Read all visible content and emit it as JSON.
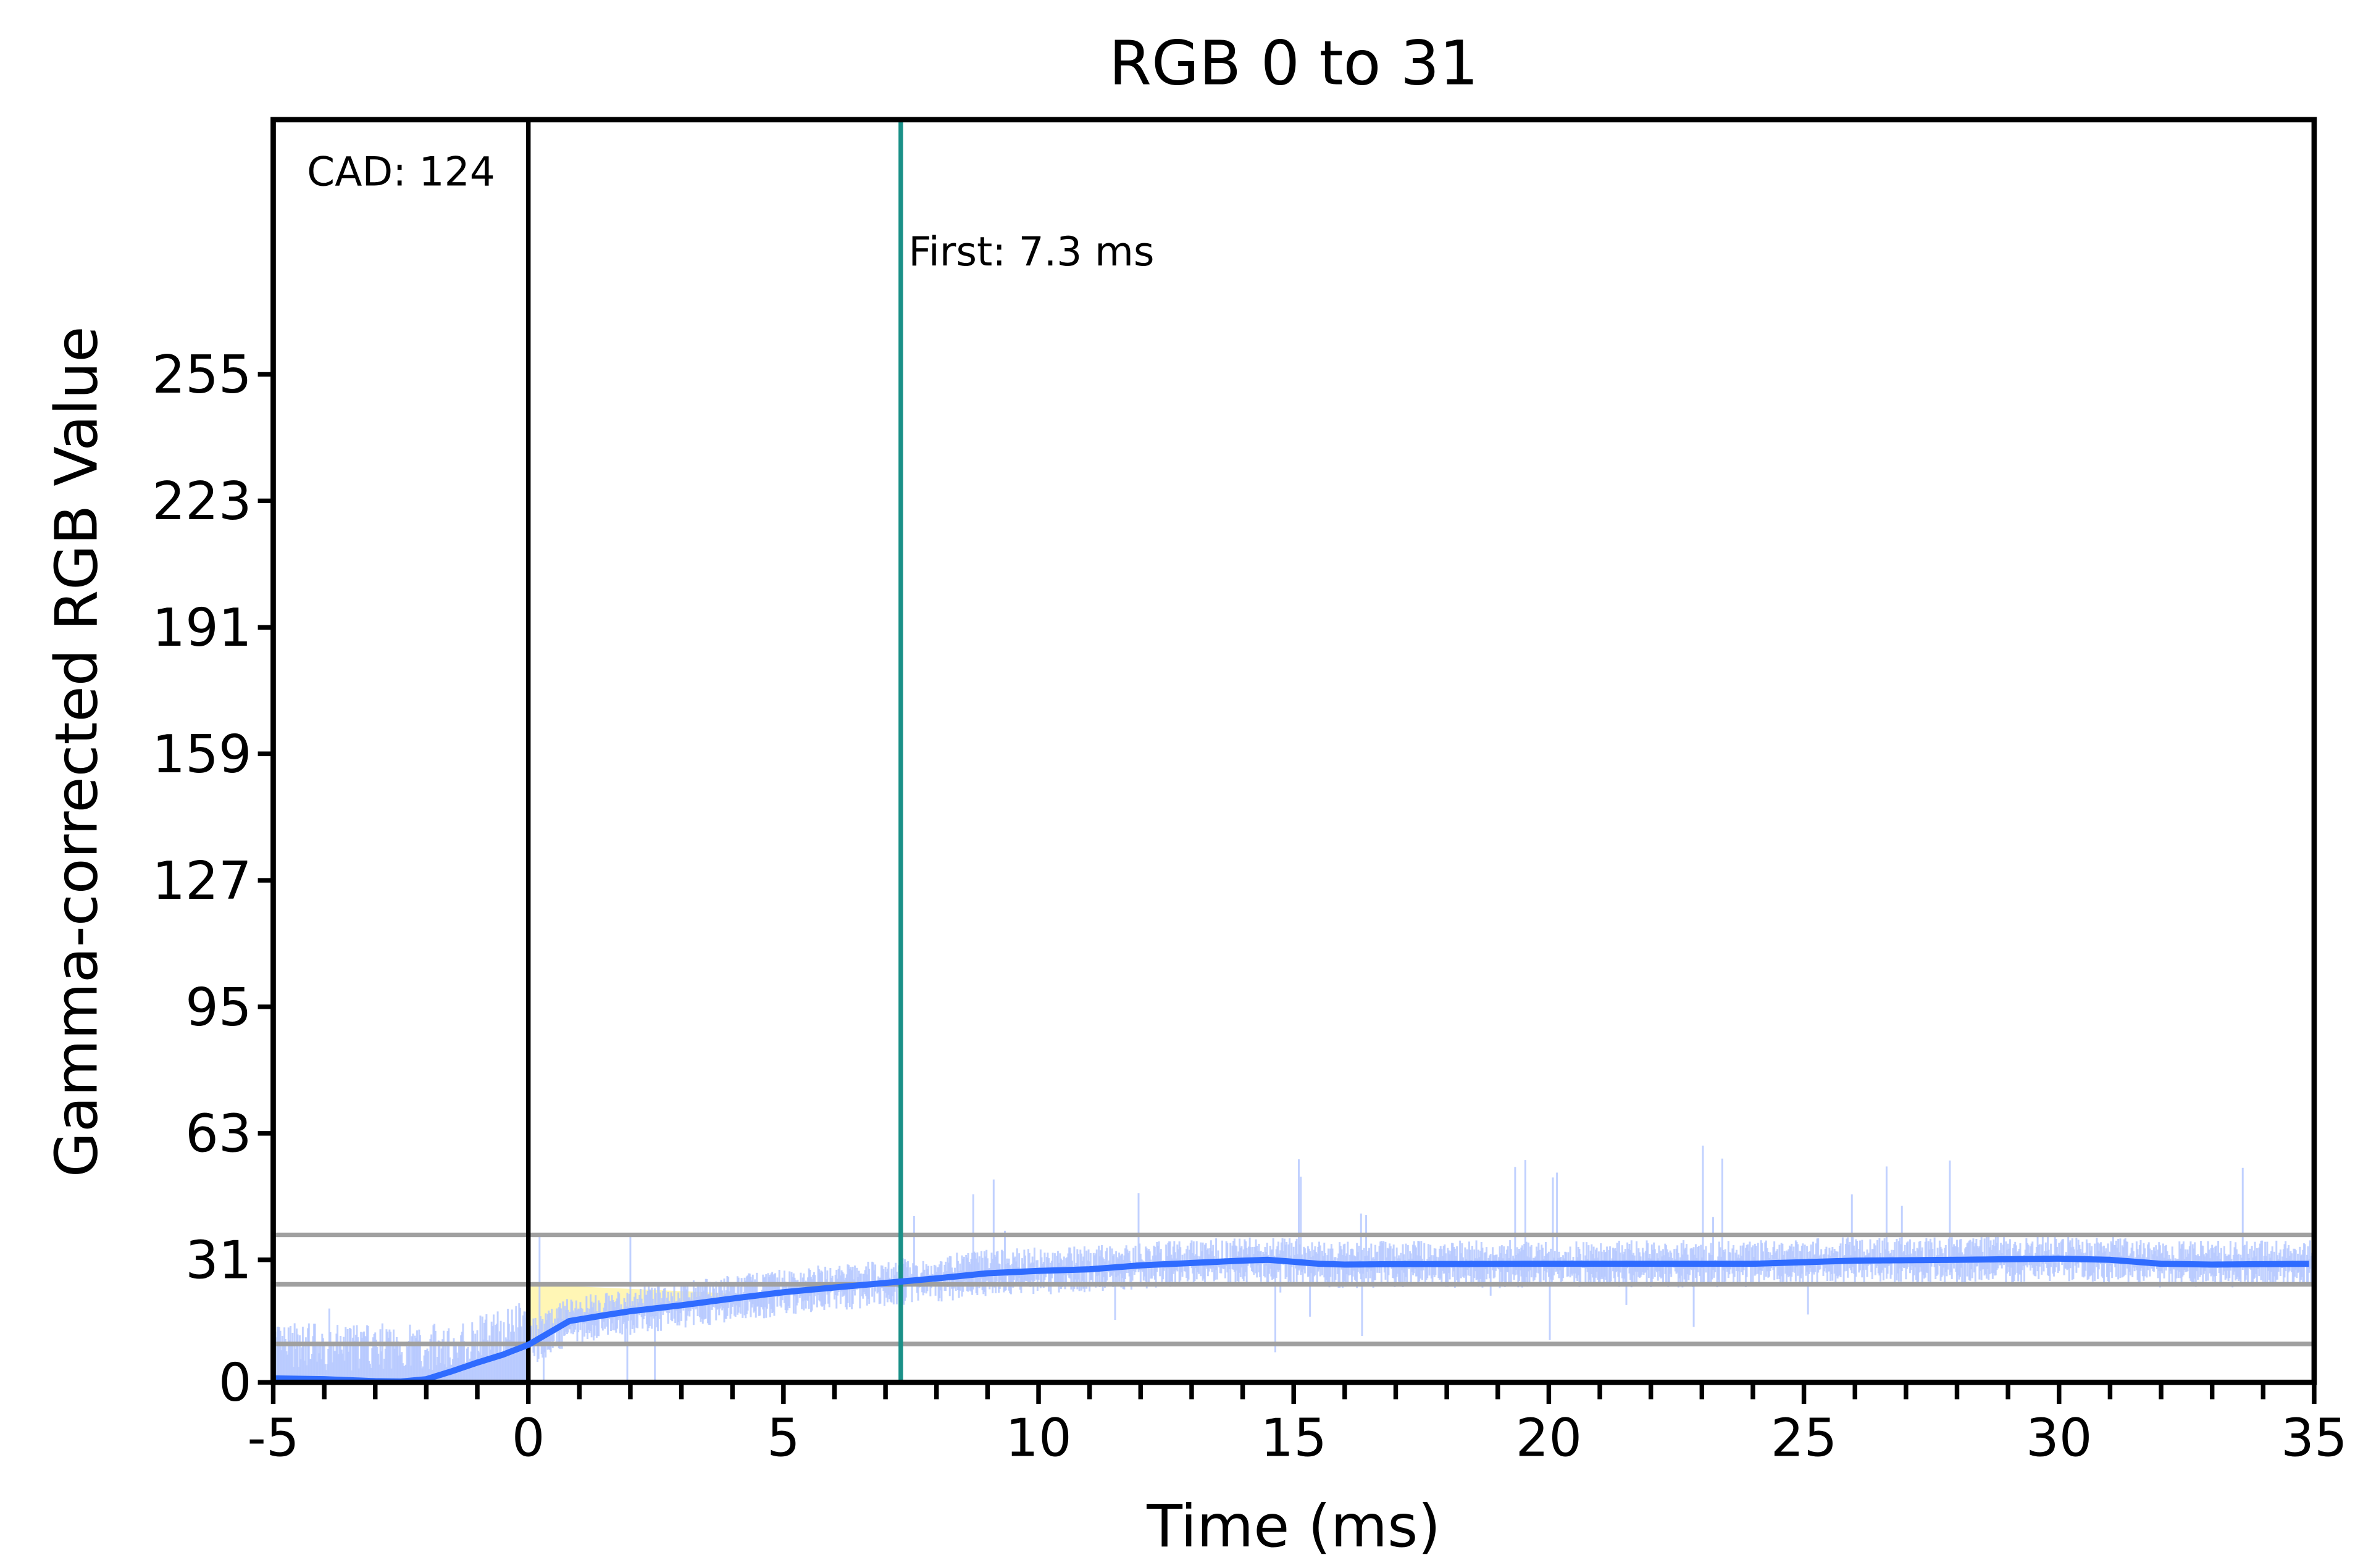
{
  "chart_data": {
    "type": "line",
    "title": "RGB 0 to 31",
    "xlabel": "Time (ms)",
    "ylabel": "Gamma-corrected RGB Value",
    "xlim": [
      -5,
      35
    ],
    "ylim": [
      0,
      290
    ],
    "xticks": [
      -5,
      0,
      5,
      10,
      15,
      20,
      25,
      30,
      35
    ],
    "xtick_labels": [
      "-5",
      "0",
      "5",
      "10",
      "15",
      "20",
      "25",
      "30",
      "35"
    ],
    "yticks": [
      0,
      31,
      63,
      95,
      127,
      159,
      191,
      223,
      255
    ],
    "ytick_labels": [
      "0",
      "31",
      "63",
      "95",
      "127",
      "159",
      "191",
      "223",
      "255"
    ],
    "grid": false,
    "threshold_lines": [
      37.3,
      24.8,
      9.7
    ],
    "cad_marker": {
      "x": 0,
      "label": "CAD: 124"
    },
    "first_marker": {
      "x": 7.3,
      "label": "First: 7.3 ms"
    },
    "shaded_region": {
      "x_start": 0,
      "x_end": 4.6,
      "upper": 24.8
    },
    "series": [
      {
        "name": "smoothed",
        "x": [
          -5,
          -4,
          -3,
          -2.5,
          -2,
          -1.5,
          -1,
          -0.5,
          0,
          0.4,
          0.8,
          1.5,
          2,
          3,
          4,
          5,
          6,
          7.3,
          8,
          9,
          10,
          11,
          12,
          13,
          14,
          14.5,
          15,
          15.5,
          16,
          17,
          20,
          24,
          26,
          28,
          30,
          31,
          32,
          33,
          35
        ],
        "y": [
          1,
          0.8,
          0.3,
          0.2,
          0.8,
          2.8,
          5,
          7,
          9.5,
          12.5,
          15.5,
          17,
          18,
          19.5,
          21.2,
          22.8,
          24,
          25.5,
          26.3,
          27.6,
          28.2,
          28.6,
          29.6,
          30.2,
          30.8,
          31,
          30.5,
          30,
          29.8,
          29.9,
          30,
          30,
          30.8,
          31,
          31.3,
          31,
          30,
          29.8,
          30
        ]
      },
      {
        "name": "raw",
        "note_only": false
      }
    ],
    "colors": {
      "smoothed": "#2f6bff",
      "raw": "#b7c9ff",
      "threshold": "#a0a0a0",
      "first": "#1a9088",
      "cad": "#000000",
      "shade": "#fff5a8"
    }
  }
}
